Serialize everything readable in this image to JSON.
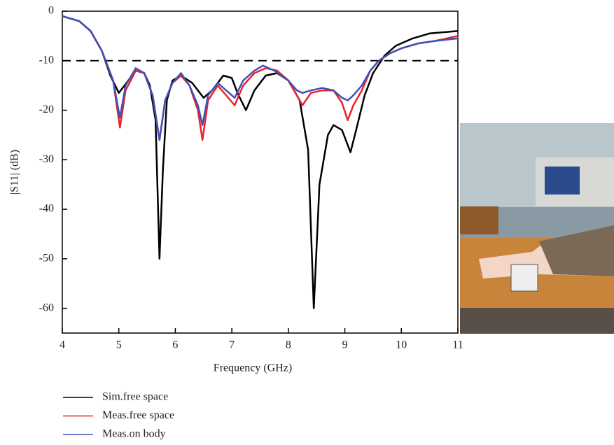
{
  "chart_data": {
    "type": "line",
    "xlabel": "Frequency (GHz)",
    "ylabel": "|S11| (dB)",
    "xlim": [
      4,
      11
    ],
    "ylim": [
      -65,
      0
    ],
    "xticks": [
      4,
      5,
      6,
      7,
      8,
      9,
      10,
      11
    ],
    "yticks": [
      0,
      -10,
      -20,
      -30,
      -40,
      -50,
      -60
    ],
    "reference_line": -10,
    "series": [
      {
        "name": "Sim.free space",
        "color": "#000000",
        "x": [
          4.0,
          4.3,
          4.5,
          4.7,
          4.85,
          5.0,
          5.1,
          5.3,
          5.45,
          5.55,
          5.65,
          5.72,
          5.78,
          5.85,
          5.95,
          6.1,
          6.3,
          6.5,
          6.65,
          6.85,
          7.0,
          7.1,
          7.25,
          7.4,
          7.6,
          7.8,
          8.0,
          8.2,
          8.35,
          8.45,
          8.55,
          8.7,
          8.8,
          8.95,
          9.1,
          9.2,
          9.35,
          9.5,
          9.7,
          9.9,
          10.2,
          10.5,
          11.0
        ],
        "values": [
          -1,
          -2,
          -4,
          -8,
          -13,
          -16.5,
          -15,
          -12,
          -12.5,
          -15,
          -22,
          -50,
          -32,
          -18,
          -14,
          -13,
          -14.5,
          -17.5,
          -16,
          -13,
          -13.5,
          -16.5,
          -20,
          -16,
          -13,
          -12.5,
          -14,
          -18,
          -28,
          -60,
          -35,
          -25,
          -23,
          -24,
          -28.5,
          -24,
          -17,
          -12.5,
          -9,
          -7,
          -5.5,
          -4.5,
          -4
        ]
      },
      {
        "name": "Meas.free space",
        "color": "#e8232a",
        "x": [
          4.0,
          4.3,
          4.5,
          4.7,
          4.9,
          5.02,
          5.12,
          5.3,
          5.45,
          5.6,
          5.72,
          5.82,
          5.95,
          6.1,
          6.25,
          6.4,
          6.48,
          6.58,
          6.75,
          6.9,
          7.05,
          7.2,
          7.4,
          7.6,
          7.8,
          8.0,
          8.15,
          8.25,
          8.4,
          8.6,
          8.8,
          8.95,
          9.05,
          9.15,
          9.3,
          9.45,
          9.6,
          9.8,
          10.0,
          10.3,
          10.6,
          11.0
        ],
        "values": [
          -1,
          -2,
          -4,
          -8,
          -14,
          -23.5,
          -16,
          -12,
          -12.5,
          -17,
          -26,
          -18,
          -14.5,
          -13,
          -15,
          -20,
          -26,
          -18,
          -15,
          -17,
          -19,
          -15,
          -12.5,
          -11.5,
          -12,
          -14,
          -17,
          -19,
          -16.5,
          -16,
          -16,
          -18.5,
          -22,
          -19,
          -16,
          -12,
          -10,
          -8.5,
          -7.5,
          -6.5,
          -6,
          -5
        ]
      },
      {
        "name": "Meas.on body",
        "color": "#3f51b5",
        "x": [
          4.0,
          4.3,
          4.5,
          4.7,
          4.9,
          5.02,
          5.12,
          5.3,
          5.45,
          5.6,
          5.72,
          5.82,
          5.95,
          6.1,
          6.25,
          6.4,
          6.48,
          6.58,
          6.75,
          6.9,
          7.05,
          7.2,
          7.4,
          7.55,
          7.75,
          8.0,
          8.15,
          8.25,
          8.4,
          8.6,
          8.8,
          8.95,
          9.05,
          9.15,
          9.3,
          9.45,
          9.6,
          9.8,
          10.0,
          10.3,
          10.6,
          11.0
        ],
        "values": [
          -1,
          -2,
          -4,
          -8,
          -14,
          -21.5,
          -15,
          -11.5,
          -12.5,
          -17,
          -26,
          -18,
          -14.5,
          -12.5,
          -15,
          -19,
          -23,
          -17,
          -14.5,
          -16,
          -17.5,
          -14,
          -12,
          -11,
          -12,
          -14,
          -16,
          -16.5,
          -16,
          -15.5,
          -16,
          -17.5,
          -18,
          -17,
          -15,
          -12,
          -10,
          -8.5,
          -7.5,
          -6.5,
          -6,
          -5.5
        ]
      }
    ]
  }
}
